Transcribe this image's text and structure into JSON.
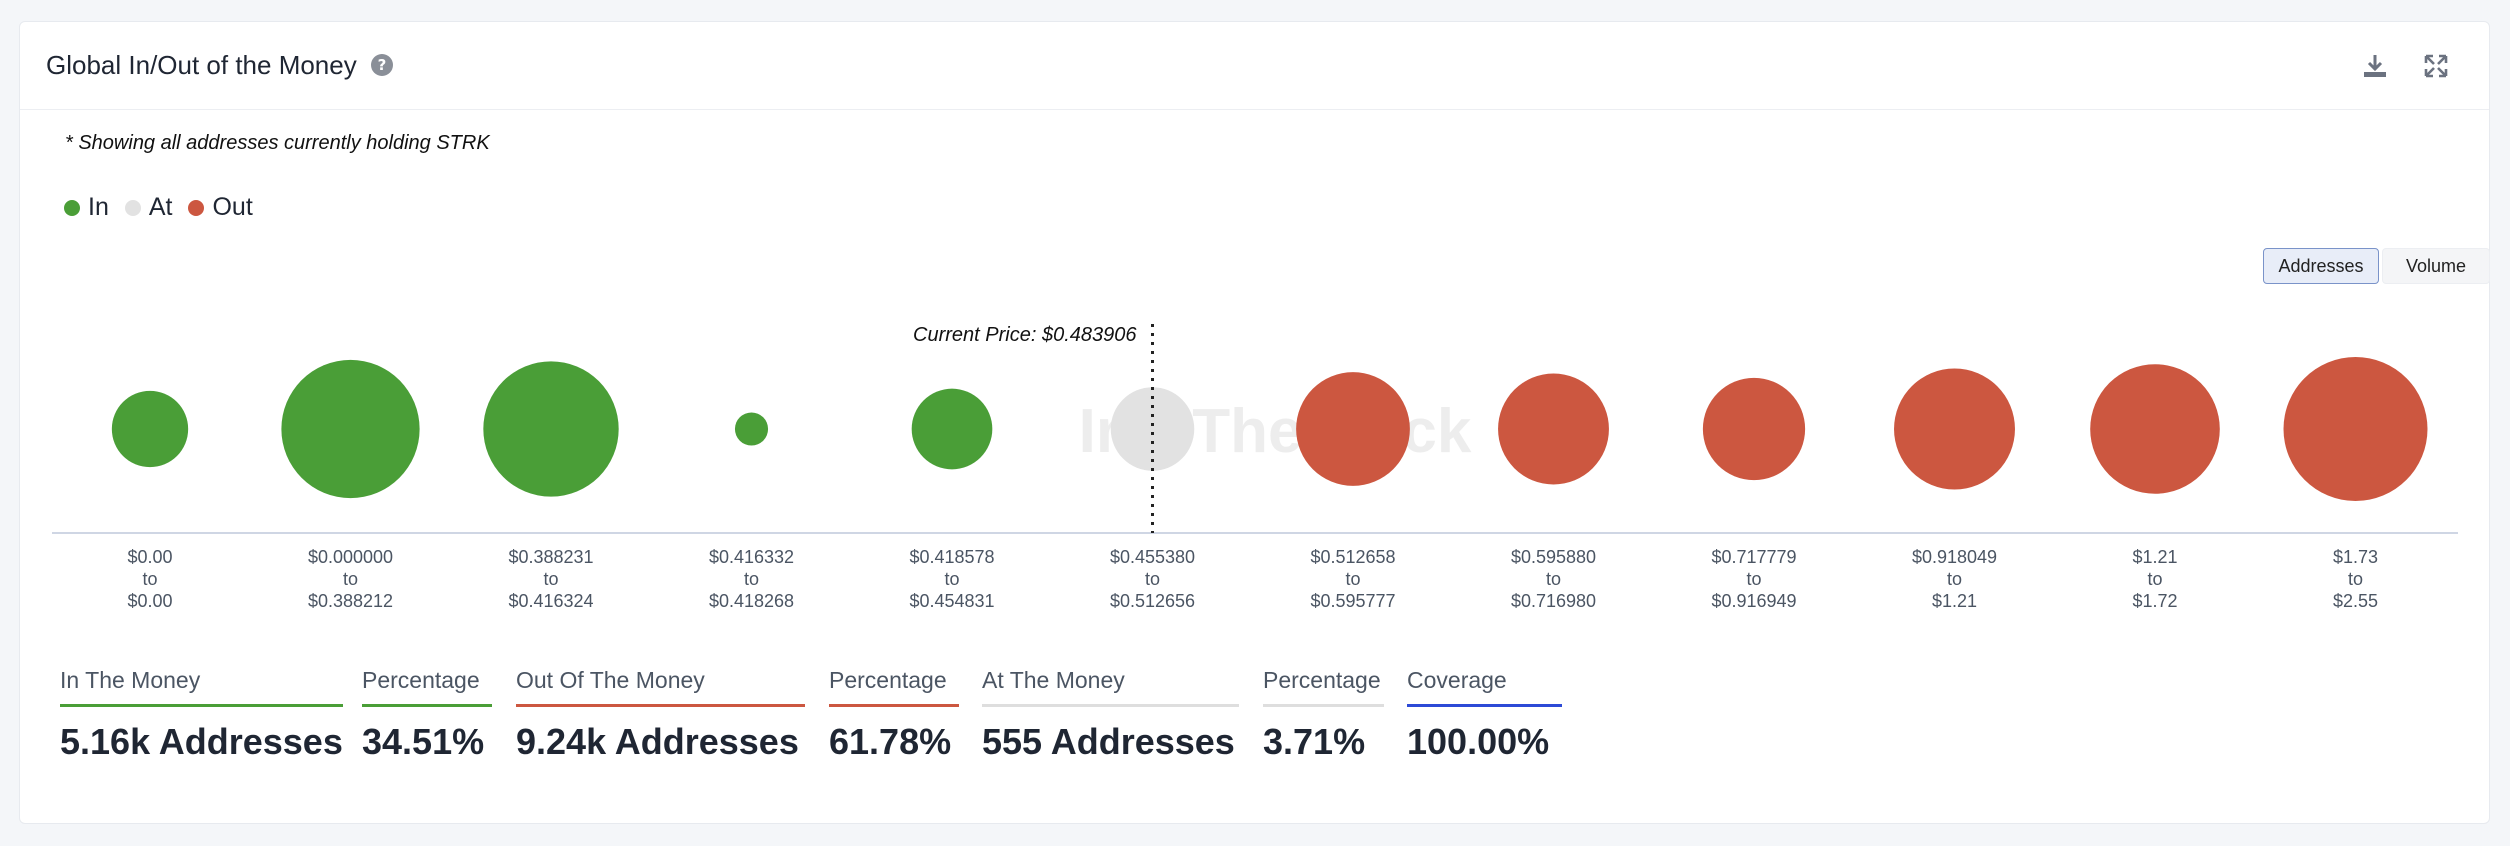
{
  "header": {
    "title": "Global In/Out of the Money",
    "help_icon": "question-circle-icon",
    "download_icon": "download-icon",
    "expand_icon": "expand-icon"
  },
  "note": "* Showing all addresses currently holding STRK",
  "legend": [
    {
      "label": "In",
      "color": "#4a9e37"
    },
    {
      "label": "At",
      "color": "#e2e2e2"
    },
    {
      "label": "Out",
      "color": "#cc5740"
    }
  ],
  "toggles": {
    "active": "Addresses",
    "addresses_label": "Addresses",
    "volume_label": "Volume"
  },
  "watermark": "IntoTheBlock",
  "chart_data": {
    "type": "bubble",
    "current_price_label": "Current Price: $0.483906",
    "current_price_bucket_index": 5,
    "colors": {
      "in": "#4a9e37",
      "at": "#e2e2e2",
      "out": "#cc5740"
    },
    "buckets": [
      {
        "low": "$0.00",
        "high": "$0.00",
        "status": "in",
        "size": 0.53
      },
      {
        "low": "$0.000000",
        "high": "$0.388212",
        "status": "in",
        "size": 0.96
      },
      {
        "low": "$0.388231",
        "high": "$0.416324",
        "status": "in",
        "size": 0.94
      },
      {
        "low": "$0.416332",
        "high": "$0.418268",
        "status": "in",
        "size": 0.23
      },
      {
        "low": "$0.418578",
        "high": "$0.454831",
        "status": "in",
        "size": 0.56
      },
      {
        "low": "$0.455380",
        "high": "$0.512656",
        "status": "at",
        "size": 0.58
      },
      {
        "low": "$0.512658",
        "high": "$0.595777",
        "status": "out",
        "size": 0.79
      },
      {
        "low": "$0.595880",
        "high": "$0.716980",
        "status": "out",
        "size": 0.77
      },
      {
        "low": "$0.717779",
        "high": "$0.916949",
        "status": "out",
        "size": 0.71
      },
      {
        "low": "$0.918049",
        "high": "$1.21",
        "status": "out",
        "size": 0.84
      },
      {
        "low": "$1.21",
        "high": "$1.72",
        "status": "out",
        "size": 0.9
      },
      {
        "low": "$1.73",
        "high": "$2.55",
        "status": "out",
        "size": 1.0
      }
    ],
    "to_label": "to"
  },
  "stats": [
    {
      "label": "In The Money",
      "value": "5.16k Addresses",
      "color": "#4a9e37"
    },
    {
      "label": "Percentage",
      "value": "34.51%",
      "color": "#4a9e37"
    },
    {
      "label": "Out Of The Money",
      "value": "9.24k Addresses",
      "color": "#cc5740"
    },
    {
      "label": "Percentage",
      "value": "61.78%",
      "color": "#cc5740"
    },
    {
      "label": "At The Money",
      "value": "555 Addresses",
      "color": "#dedede"
    },
    {
      "label": "Percentage",
      "value": "3.71%",
      "color": "#dedede"
    },
    {
      "label": "Coverage",
      "value": "100.00%",
      "color": "#2d4ad6"
    }
  ]
}
